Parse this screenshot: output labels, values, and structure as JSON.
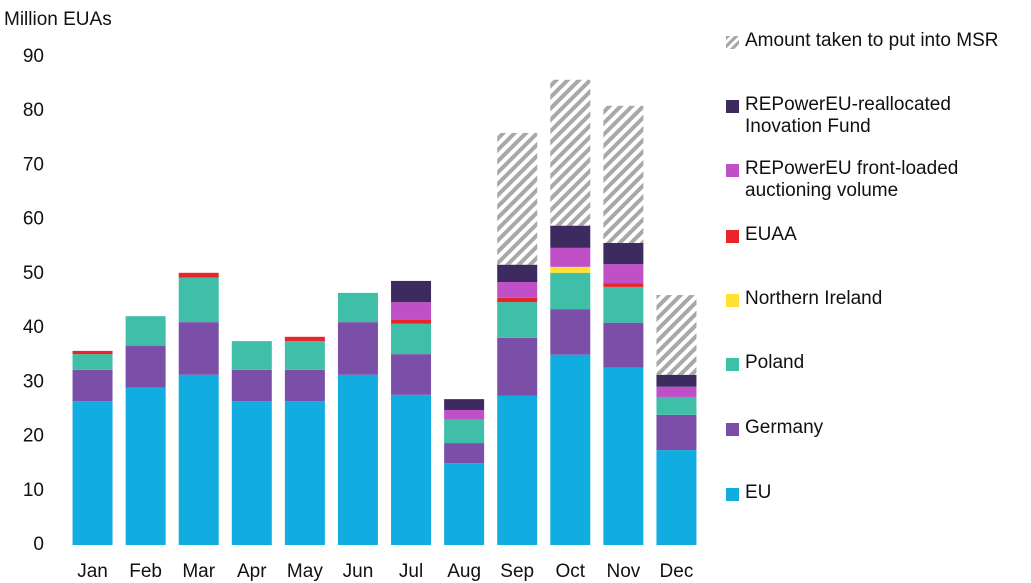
{
  "chart_data": {
    "type": "stacked_bar",
    "y_label": "Million EUAs",
    "categories": [
      "Jan",
      "Feb",
      "Mar",
      "Apr",
      "May",
      "Jun",
      "Jul",
      "Aug",
      "Sep",
      "Oct",
      "Nov",
      "Dec"
    ],
    "ylim": [
      0,
      90
    ],
    "yticks": [
      0,
      10,
      20,
      30,
      40,
      50,
      60,
      70,
      80,
      90
    ],
    "series": [
      {
        "name": "EU",
        "color": "#12ade0",
        "values": [
          26.5,
          29,
          31.4,
          26.5,
          26.5,
          31.4,
          27.7,
          15.1,
          27.5,
          35.1,
          32.7,
          17.5
        ]
      },
      {
        "name": "Germany",
        "color": "#7b4fa8",
        "values": [
          5.8,
          7.7,
          9.7,
          5.8,
          5.8,
          9.7,
          7.5,
          3.7,
          10.7,
          8.4,
          8.3,
          6.5
        ]
      },
      {
        "name": "Poland",
        "color": "#3fbfa8",
        "values": [
          2.9,
          5.5,
          8.2,
          5.3,
          5.3,
          5.4,
          5.6,
          4.3,
          6.6,
          6.7,
          6.6,
          3.3
        ]
      },
      {
        "name": "Northern Ireland",
        "color": "#ffe033",
        "values": [
          0,
          0,
          0,
          0,
          0,
          0,
          0,
          0,
          0,
          1.1,
          0,
          0
        ]
      },
      {
        "name": "EUAA",
        "color": "#e8262a",
        "values": [
          0.6,
          0,
          0.9,
          0,
          0.8,
          0,
          0.7,
          0,
          0.8,
          0,
          0.7,
          0
        ]
      },
      {
        "name": "REPowerEU front-loaded auctioning volume",
        "color": "#c050c8",
        "values": [
          0,
          0,
          0,
          0,
          0,
          0,
          3.3,
          1.8,
          2.9,
          3.5,
          3.5,
          1.9
        ]
      },
      {
        "name": "REPowerEU-reallocated Inovation Fund",
        "color": "#3d2a5e",
        "values": [
          0,
          0,
          0,
          0,
          0,
          0,
          3.9,
          2.0,
          3.2,
          4.1,
          3.9,
          2.2
        ]
      },
      {
        "name": "Amount taken to put into MSR",
        "color": "#a8a8a8",
        "pattern": "hatch",
        "values": [
          0,
          0,
          0,
          0,
          0,
          0,
          0,
          0,
          24.3,
          26.9,
          25.3,
          14.7
        ]
      }
    ]
  }
}
